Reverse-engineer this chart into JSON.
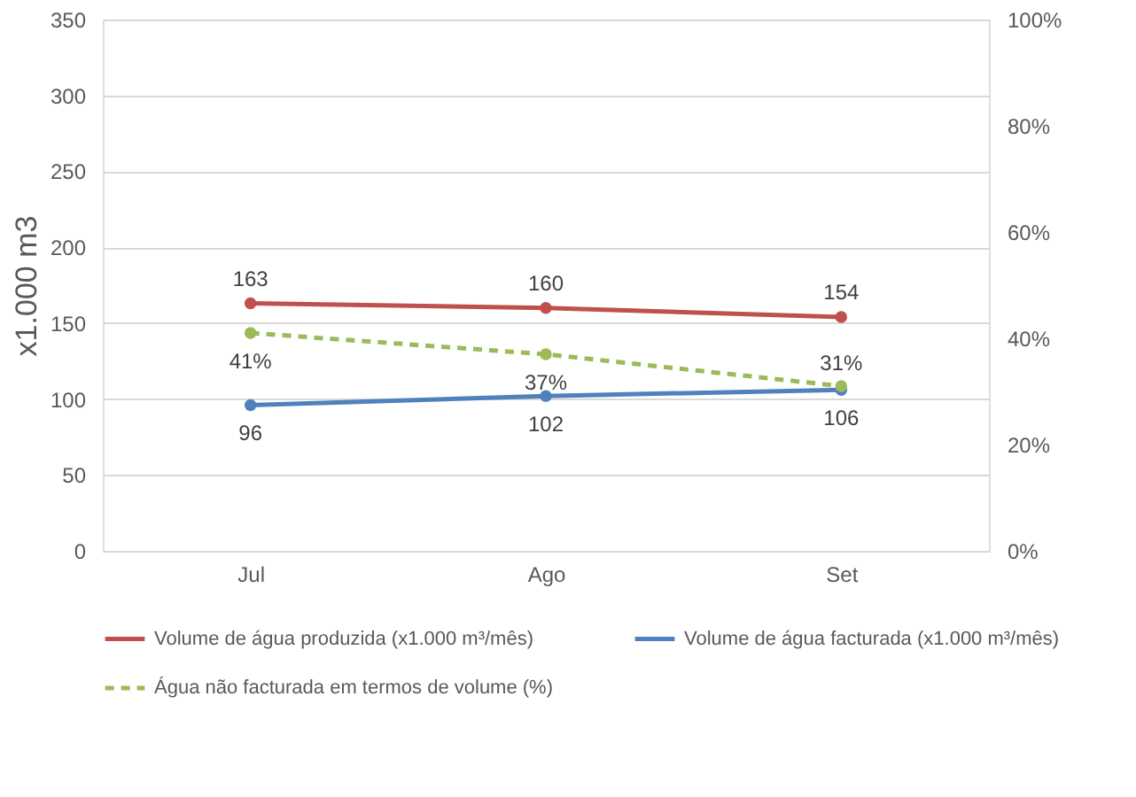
{
  "chart_data": {
    "type": "line",
    "categories": [
      "Jul",
      "Ago",
      "Set"
    ],
    "ylabel": "x1.000 m3",
    "ylim": [
      0,
      350
    ],
    "yticks": [
      0,
      50,
      100,
      150,
      200,
      250,
      300,
      350
    ],
    "y2lim": [
      0,
      100
    ],
    "y2ticks": [
      {
        "value": 0,
        "label": "0%"
      },
      {
        "value": 20,
        "label": "20%"
      },
      {
        "value": 40,
        "label": "40%"
      },
      {
        "value": 60,
        "label": "60%"
      },
      {
        "value": 80,
        "label": "80%"
      },
      {
        "value": 100,
        "label": "100%"
      }
    ],
    "grid": "y",
    "legend": "bottom",
    "marker": "circle",
    "series": [
      {
        "name": "Volume de água produzida (x1.000 m³/mês)",
        "color": "#c0504d",
        "values": [
          163,
          160,
          154
        ],
        "line_style": "solid",
        "data_labels": true
      },
      {
        "name": "Volume de água facturada (x1.000 m³/mês)",
        "color": "#4f81bd",
        "values": [
          96,
          102,
          106
        ],
        "line_style": "solid",
        "data_labels": true
      },
      {
        "name": "Água não facturada em termos de volume (%)",
        "color": "#9bbb59",
        "values": [
          41,
          37,
          31
        ],
        "axis": "y2",
        "line_style": "dashed",
        "value_labels": [
          "41%",
          "37%",
          "31%"
        ]
      }
    ]
  }
}
